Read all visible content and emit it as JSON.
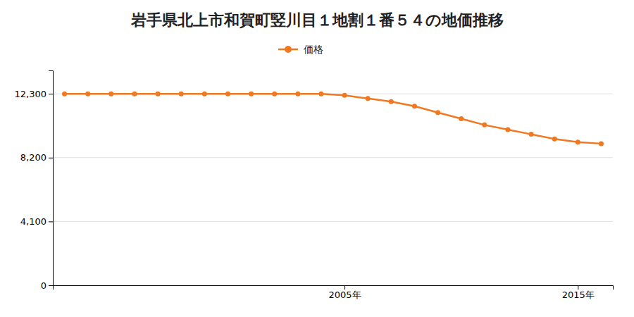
{
  "chart_data": {
    "type": "line",
    "title": "岩手県北上市和賀町竪川目１地割１番５４の地価推移",
    "x": [
      1993,
      1994,
      1995,
      1996,
      1997,
      1998,
      1999,
      2000,
      2001,
      2002,
      2003,
      2004,
      2005,
      2006,
      2007,
      2008,
      2009,
      2010,
      2011,
      2012,
      2013,
      2014,
      2015,
      2016
    ],
    "series": [
      {
        "name": "価格",
        "color": "#f07820",
        "marker": "circle",
        "line_style": "solid",
        "values": [
          12300,
          12300,
          12300,
          12300,
          12300,
          12300,
          12300,
          12300,
          12300,
          12300,
          12300,
          12300,
          12200,
          12000,
          11800,
          11500,
          11100,
          10700,
          10300,
          10000,
          9700,
          9400,
          9200,
          9100
        ]
      }
    ],
    "xlim": [
      1992.5,
      2016.5
    ],
    "xticks": [
      {
        "value": 2005,
        "label": "2005年"
      },
      {
        "value": 2015,
        "label": "2015年"
      }
    ],
    "ylim": [
      0,
      13800
    ],
    "yticks": [
      0,
      {
        "value": 4100,
        "label": "4,100"
      },
      {
        "value": 8200,
        "label": "8,200"
      },
      {
        "value": 12300,
        "label": "12,300"
      }
    ],
    "grid": true,
    "legend": "top"
  }
}
